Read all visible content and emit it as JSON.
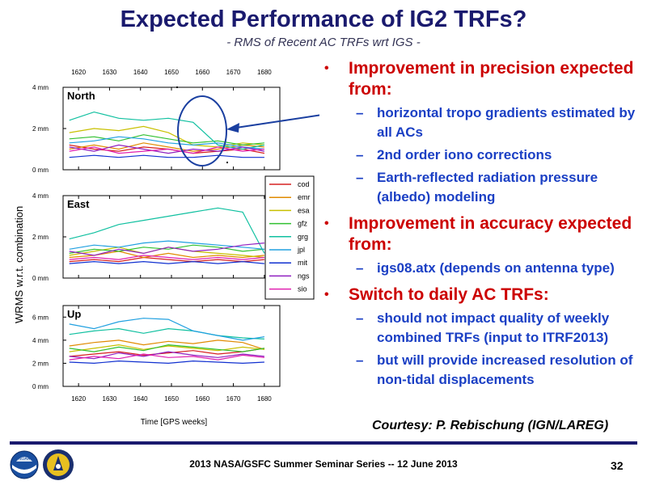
{
  "slide": {
    "title": "Expected Performance of IG2 TRFs?",
    "subtitle": "- RMS of Recent AC TRFs wrt IGS -",
    "courtesy": "Courtesy: P. Rebischung (IGN/LAREG)",
    "footer": "2013 NASA/GSFC Summer Seminar Series -- 12 June 2013",
    "page_number": "32",
    "logos": [
      {
        "name": "noaa-logo",
        "text": "NOAA"
      },
      {
        "name": "ngs-logo",
        "text": ""
      }
    ]
  },
  "bullets": [
    {
      "text": "Improvement in precision expected from:",
      "sub": [
        "horizontal tropo gradients estimated by all ACs",
        "2nd order iono corrections",
        "Earth-reflected radiation pressure (albedo) modeling"
      ]
    },
    {
      "text": "Improvement in accuracy expected from:",
      "sub": [
        "igs08.atx (depends on antenna type)"
      ]
    },
    {
      "text": "Switch to daily AC TRFs:",
      "sub": [
        "should not impact quality of weekly combined TRFs (input to ITRF2013)",
        "but will provide increased resolution of non-tidal displacements"
      ]
    }
  ],
  "chart_data": {
    "type": "line",
    "ylabel": "WRMS  w.r.t.  combination",
    "xlabel": "Time [GPS weeks]",
    "xlim": [
      1615,
      1685
    ],
    "x_ticks": [
      "1620",
      "1630",
      "1640",
      "1650",
      "1660",
      "1670",
      "1680"
    ],
    "colors": {
      "cod": "#d62020",
      "emr": "#e08a00",
      "esa": "#c8c000",
      "gfz": "#30c030",
      "grg": "#10c0a0",
      "jpl": "#20a0e0",
      "mit": "#1030d0",
      "ngs": "#9020c0",
      "sio": "#e020b0"
    },
    "legend": [
      "cod",
      "emr",
      "esa",
      "gfz",
      "grg",
      "jpl",
      "mit",
      "ngs",
      "sio"
    ],
    "panels": [
      {
        "label": "North",
        "ylim": [
          0,
          4
        ],
        "y_ticks": [
          "0 mm",
          "2 mm",
          "4 mm"
        ],
        "x": [
          1617,
          1625,
          1633,
          1641,
          1649,
          1657,
          1665,
          1673,
          1680
        ],
        "series": {
          "cod": [
            1.2,
            1.0,
            0.9,
            1.1,
            1.0,
            0.8,
            0.9,
            1.0,
            0.8
          ],
          "emr": [
            1.0,
            1.2,
            1.0,
            1.3,
            1.1,
            0.9,
            1.0,
            1.2,
            1.1
          ],
          "esa": [
            1.8,
            2.0,
            1.9,
            2.1,
            1.8,
            1.2,
            1.1,
            1.3,
            1.2
          ],
          "gfz": [
            1.5,
            1.6,
            1.4,
            1.7,
            1.5,
            1.3,
            1.4,
            1.2,
            1.3
          ],
          "grg": [
            2.4,
            2.8,
            2.5,
            2.4,
            2.5,
            2.3,
            1.2,
            1.0,
            1.2
          ],
          "jpl": [
            1.3,
            1.4,
            1.6,
            1.5,
            1.3,
            1.2,
            1.3,
            1.1,
            1.0
          ],
          "mit": [
            0.6,
            0.7,
            0.6,
            0.7,
            0.6,
            0.6,
            0.7,
            0.6,
            0.6
          ],
          "ngs": [
            1.1,
            0.9,
            1.2,
            1.0,
            0.8,
            1.0,
            0.9,
            1.1,
            0.9
          ],
          "sio": [
            0.9,
            1.1,
            0.8,
            0.9,
            1.0,
            0.8,
            1.1,
            0.9,
            1.0
          ]
        }
      },
      {
        "label": "East",
        "ylim": [
          0,
          4
        ],
        "y_ticks": [
          "0 mm",
          "2 mm",
          "4 mm"
        ],
        "x": [
          1617,
          1625,
          1633,
          1641,
          1649,
          1657,
          1665,
          1673,
          1680
        ],
        "series": {
          "cod": [
            0.8,
            0.9,
            0.8,
            1.0,
            0.9,
            0.8,
            0.9,
            0.8,
            0.9
          ],
          "emr": [
            1.0,
            1.1,
            1.3,
            1.0,
            1.2,
            1.0,
            1.1,
            1.0,
            1.1
          ],
          "esa": [
            1.1,
            1.3,
            1.5,
            1.2,
            1.5,
            1.3,
            1.2,
            1.1,
            1.0
          ],
          "gfz": [
            1.2,
            1.4,
            1.3,
            1.5,
            1.4,
            1.6,
            1.5,
            1.3,
            1.4
          ],
          "grg": [
            1.9,
            2.2,
            2.6,
            2.8,
            3.0,
            3.2,
            3.4,
            3.2,
            1.2
          ],
          "jpl": [
            1.4,
            1.6,
            1.5,
            1.7,
            1.8,
            1.7,
            1.6,
            1.5,
            1.4
          ],
          "mit": [
            0.7,
            0.8,
            0.7,
            0.8,
            0.7,
            0.8,
            0.7,
            0.8,
            0.7
          ],
          "ngs": [
            1.3,
            1.1,
            1.4,
            1.2,
            1.5,
            1.3,
            1.4,
            1.6,
            1.7
          ],
          "sio": [
            0.9,
            1.0,
            0.9,
            1.1,
            1.0,
            0.9,
            1.0,
            0.9,
            1.0
          ]
        }
      },
      {
        "label": "Up",
        "ylim": [
          0,
          7
        ],
        "y_ticks": [
          "0 mm",
          "2 mm",
          "4 mm",
          "6 mm"
        ],
        "x": [
          1617,
          1625,
          1633,
          1641,
          1649,
          1657,
          1665,
          1673,
          1680
        ],
        "series": {
          "cod": [
            2.6,
            2.8,
            3.0,
            2.7,
            2.9,
            3.1,
            2.8,
            3.0,
            3.3
          ],
          "emr": [
            3.5,
            3.8,
            4.0,
            3.6,
            3.9,
            3.7,
            4.0,
            3.8,
            3.2
          ],
          "esa": [
            3.0,
            3.3,
            3.6,
            3.2,
            3.5,
            3.3,
            3.1,
            3.4,
            3.2
          ],
          "gfz": [
            3.3,
            3.0,
            3.4,
            3.1,
            3.6,
            3.4,
            3.2,
            3.0,
            3.3
          ],
          "grg": [
            4.5,
            4.8,
            5.0,
            4.6,
            5.0,
            4.8,
            4.4,
            4.2,
            4.1
          ],
          "jpl": [
            5.4,
            5.0,
            5.6,
            5.9,
            5.8,
            4.8,
            4.4,
            4.0,
            4.3
          ],
          "mit": [
            2.1,
            2.0,
            2.2,
            2.1,
            2.0,
            2.2,
            2.1,
            2.0,
            2.1
          ],
          "ngs": [
            2.6,
            2.4,
            2.9,
            2.6,
            3.0,
            2.7,
            2.5,
            2.8,
            2.6
          ],
          "sio": [
            2.3,
            2.6,
            2.4,
            2.8,
            2.5,
            2.6,
            2.3,
            2.7,
            2.5
          ]
        }
      }
    ]
  }
}
